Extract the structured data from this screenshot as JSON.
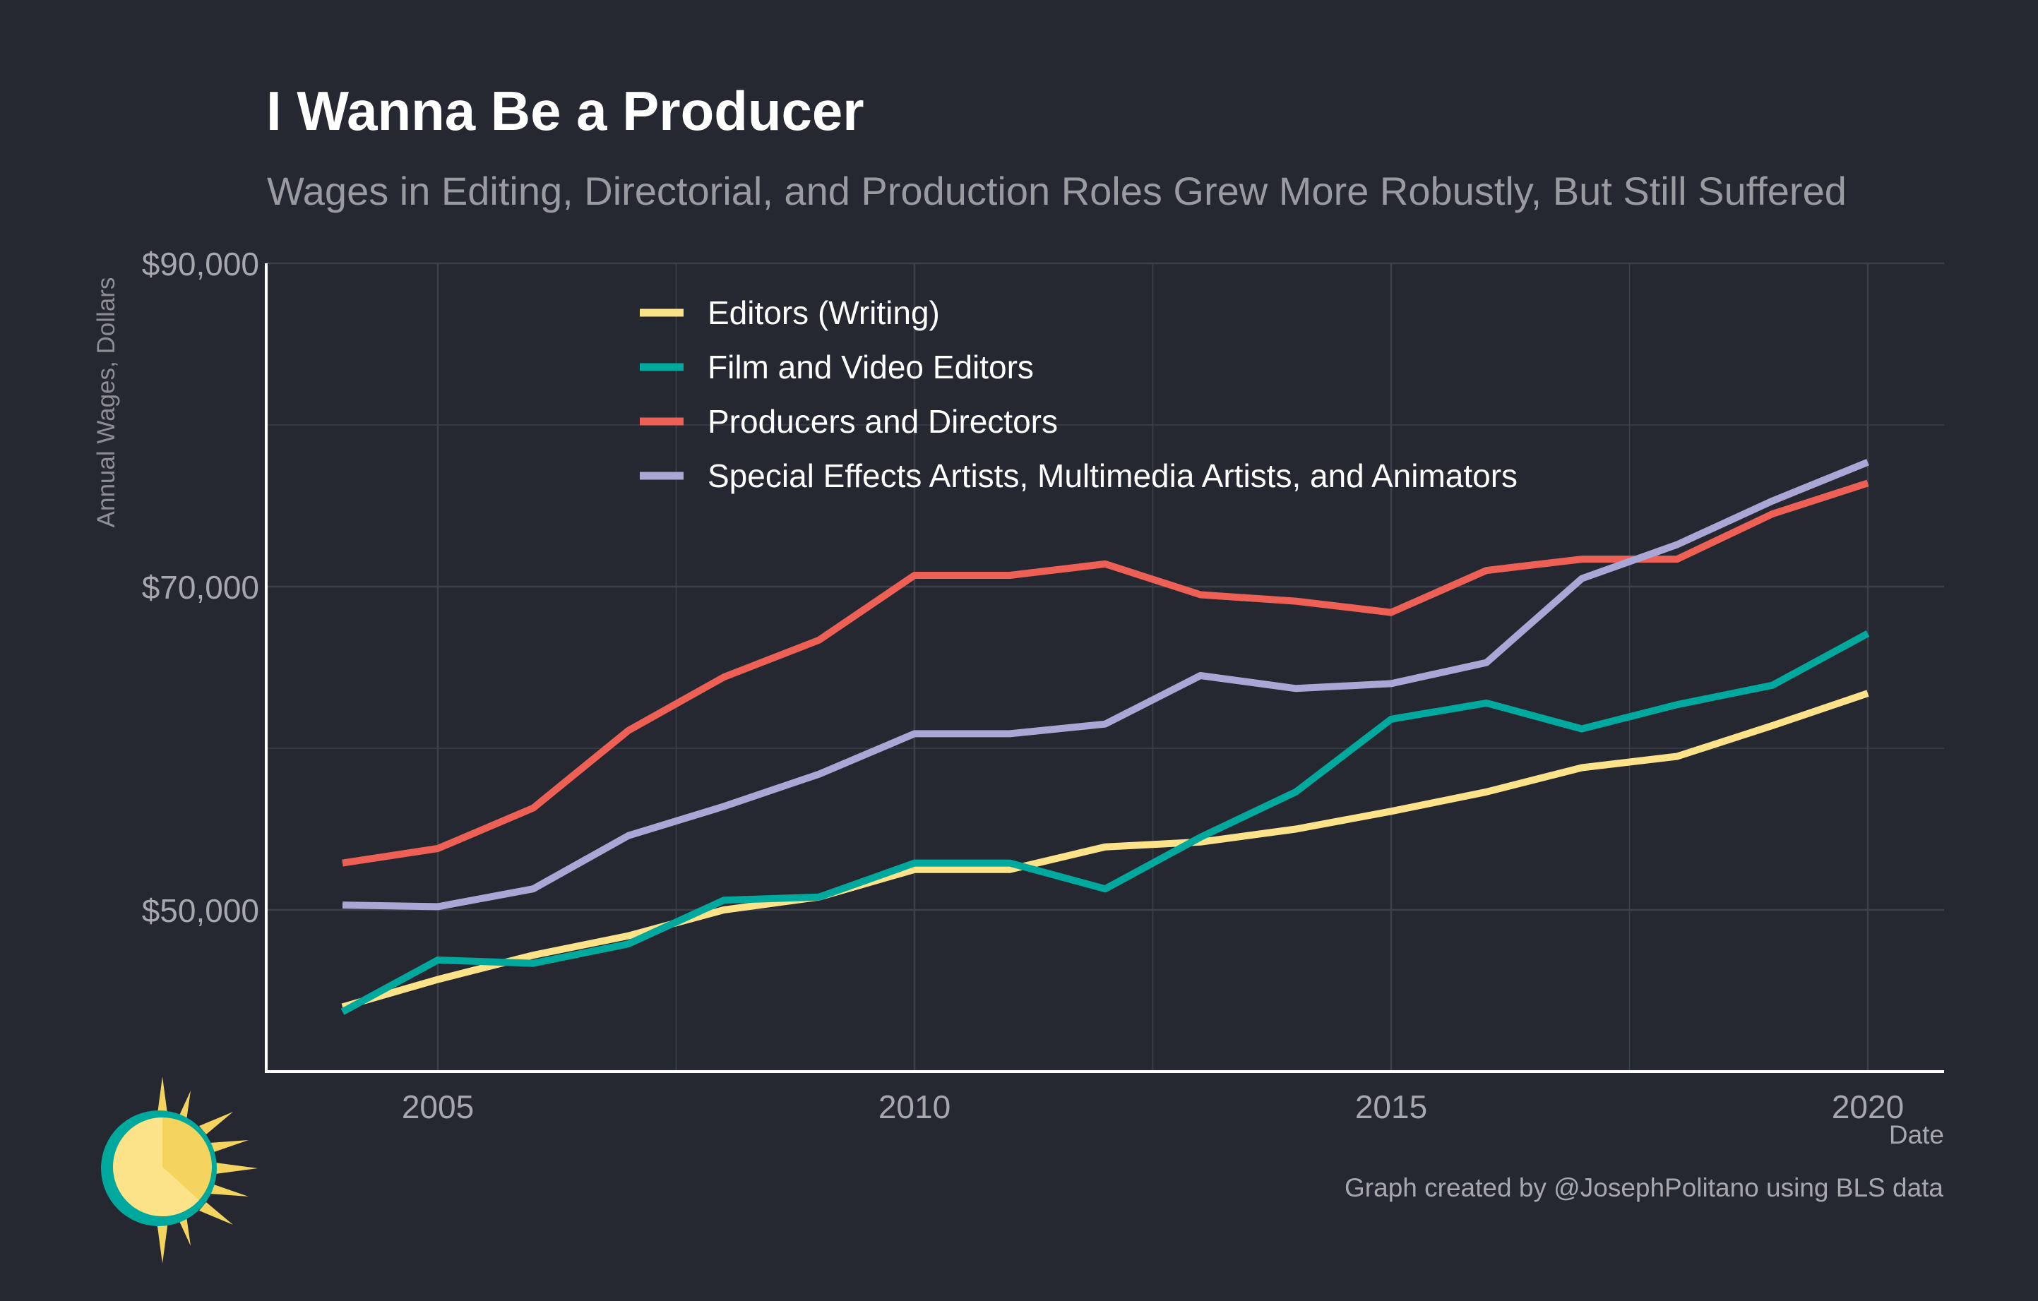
{
  "header": {
    "title": "I Wanna Be a Producer",
    "subtitle": "Wages in Editing, Directorial, and Production Roles Grew More Robustly, But Still Suffered"
  },
  "footer": {
    "credit": "Graph created by @JosephPolitano using BLS data"
  },
  "logo": {
    "icon": "sun-logo-icon"
  },
  "colors": {
    "background": "#252830",
    "grid": "#3d4048",
    "axis": "#ffffff",
    "tick_text": "#a7a8ad"
  },
  "chart_data": {
    "type": "line",
    "title": "I Wanna Be a Producer",
    "subtitle": "Wages in Editing, Directorial, and Production Roles Grew More Robustly, But Still Suffered",
    "xlabel": "Date",
    "ylabel": "Annual Wages, Dollars",
    "xlim": [
      2003.2,
      2020.8
    ],
    "ylim": [
      40000,
      90000
    ],
    "x_ticks": [
      2005,
      2010,
      2015,
      2020
    ],
    "x_tick_labels": [
      "2005",
      "2010",
      "2015",
      "2020"
    ],
    "y_ticks": [
      50000,
      70000,
      90000
    ],
    "y_tick_labels": [
      "$50,000",
      "$70,000",
      "$90,000"
    ],
    "grid": true,
    "legend_position": "top-center",
    "x": [
      2004,
      2005,
      2006,
      2007,
      2008,
      2009,
      2010,
      2011,
      2012,
      2013,
      2014,
      2015,
      2016,
      2017,
      2018,
      2019,
      2020
    ],
    "series": [
      {
        "name": "Editors (Writing)",
        "color": "#fce38a",
        "values": [
          44000,
          45700,
          47200,
          48400,
          50000,
          50800,
          52500,
          52500,
          53900,
          54200,
          55000,
          56100,
          57300,
          58800,
          59500,
          61400,
          63400
        ]
      },
      {
        "name": "Film and Video Editors",
        "color": "#00a99d",
        "values": [
          43700,
          46900,
          46700,
          47900,
          50600,
          50800,
          52900,
          52900,
          51300,
          54500,
          57300,
          61800,
          62800,
          61200,
          62700,
          63900,
          67100
        ]
      },
      {
        "name": "Producers and Directors",
        "color": "#ee6055",
        "values": [
          52900,
          53800,
          56300,
          61100,
          64400,
          66700,
          70700,
          70700,
          71400,
          69500,
          69100,
          68400,
          71000,
          71700,
          71700,
          74500,
          76400
        ]
      },
      {
        "name": "Special Effects Artists, Multimedia Artists, and Animators",
        "color": "#aaa7d6",
        "values": [
          50300,
          50200,
          51300,
          54600,
          56400,
          58400,
          60900,
          60900,
          61500,
          64500,
          63700,
          64000,
          65300,
          70500,
          72600,
          75300,
          77700
        ]
      }
    ]
  }
}
